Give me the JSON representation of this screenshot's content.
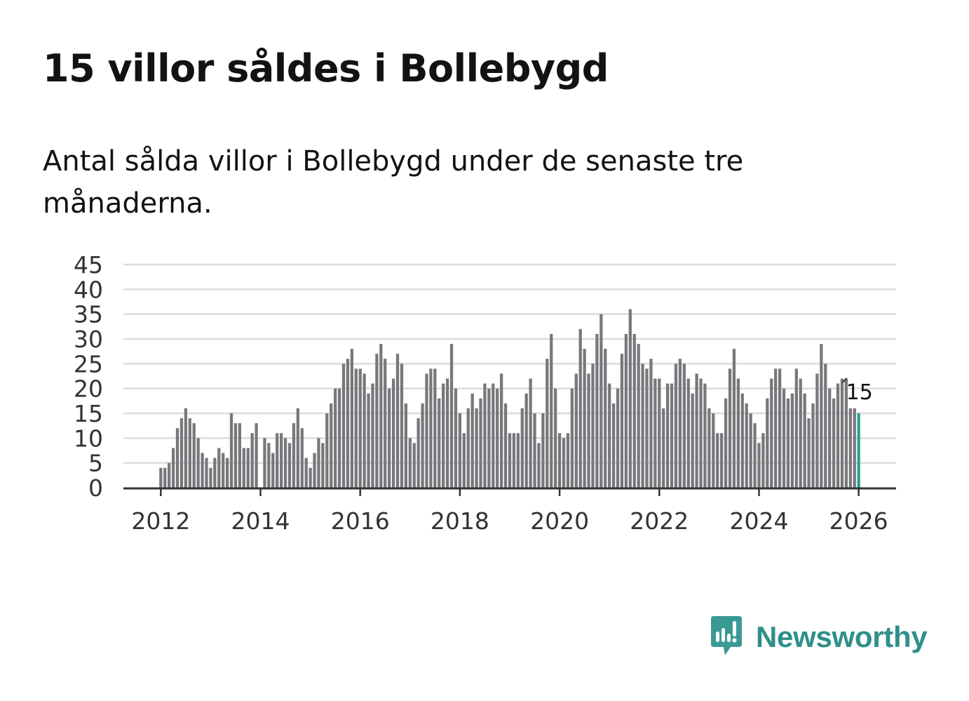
{
  "title": "15 villor såldes i Bollebygd",
  "subtitle": "Antal sålda villor i Bollebygd under de senaste tre månaderna.",
  "brand": "Newsworthy",
  "colors": {
    "bar": "#77777c",
    "highlight": "#2a9d93",
    "grid": "#dcdcdc",
    "axis": "#333333",
    "text": "#121212",
    "brand": "#3a9a93"
  },
  "chart_data": {
    "type": "bar",
    "title": "15 villor såldes i Bollebygd",
    "xlabel": "",
    "ylabel": "",
    "ylim": [
      0,
      45
    ],
    "yticks": [
      0,
      5,
      10,
      15,
      20,
      25,
      30,
      35,
      40,
      45
    ],
    "xticks": [
      2012,
      2014,
      2016,
      2018,
      2020,
      2022,
      2024,
      2026
    ],
    "x_start": "2012-01",
    "x_range": [
      2011.25,
      2026.75
    ],
    "grid": true,
    "annotation": {
      "label": "15",
      "value": 15,
      "target": "last"
    },
    "values": [
      4,
      4,
      5,
      8,
      12,
      14,
      16,
      14,
      13,
      10,
      7,
      6,
      4,
      6,
      8,
      7,
      6,
      15,
      13,
      13,
      8,
      8,
      11,
      13,
      0,
      10,
      9,
      7,
      11,
      11,
      10,
      9,
      13,
      16,
      12,
      6,
      4,
      7,
      10,
      9,
      15,
      17,
      20,
      20,
      25,
      26,
      28,
      24,
      24,
      23,
      19,
      21,
      27,
      29,
      26,
      20,
      22,
      27,
      25,
      17,
      10,
      9,
      14,
      17,
      23,
      24,
      24,
      18,
      21,
      22,
      29,
      20,
      15,
      11,
      16,
      19,
      16,
      18,
      21,
      20,
      21,
      20,
      23,
      17,
      11,
      11,
      11,
      16,
      19,
      22,
      15,
      9,
      15,
      26,
      31,
      20,
      11,
      10,
      11,
      20,
      23,
      32,
      28,
      23,
      25,
      31,
      35,
      28,
      21,
      17,
      20,
      27,
      31,
      36,
      31,
      29,
      25,
      24,
      26,
      22,
      22,
      16,
      21,
      21,
      25,
      26,
      25,
      22,
      19,
      23,
      22,
      21,
      16,
      15,
      11,
      11,
      18,
      24,
      28,
      22,
      19,
      17,
      15,
      13,
      9,
      11,
      18,
      22,
      24,
      24,
      20,
      18,
      19,
      24,
      22,
      19,
      14,
      17,
      23,
      29,
      25,
      20,
      18,
      21,
      22,
      22,
      16,
      16,
      15
    ]
  }
}
